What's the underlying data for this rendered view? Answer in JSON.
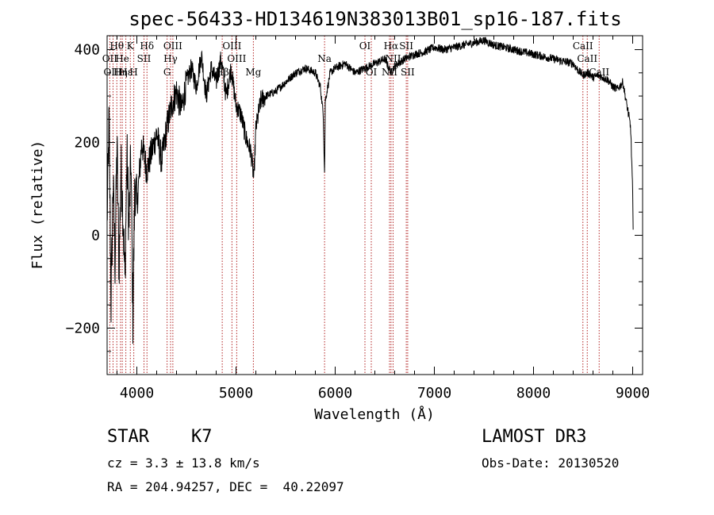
{
  "chart_data": {
    "type": "line",
    "title": "spec-56433-HD134619N383013B01_sp16-187.fits",
    "xlabel": "Wavelength (Å)",
    "ylabel": "Flux (relative)",
    "xlim": [
      3700,
      9100
    ],
    "ylim": [
      -300,
      430
    ],
    "x_ticks": [
      4000,
      5000,
      6000,
      7000,
      8000,
      9000
    ],
    "x_tick_labels": [
      "4000",
      "5000",
      "6000",
      "7000",
      "8000",
      "9000"
    ],
    "y_ticks": [
      -200,
      0,
      200,
      400
    ],
    "y_tick_labels": [
      "−200",
      "0",
      "200",
      "400"
    ],
    "grid": false,
    "series": [
      {
        "name": "flux",
        "x": [
          3700,
          3720,
          3740,
          3760,
          3780,
          3800,
          3820,
          3840,
          3860,
          3880,
          3900,
          3920,
          3940,
          3960,
          3980,
          4000,
          4050,
          4100,
          4150,
          4200,
          4250,
          4300,
          4350,
          4400,
          4450,
          4500,
          4550,
          4600,
          4650,
          4700,
          4750,
          4800,
          4850,
          4900,
          4950,
          5000,
          5050,
          5100,
          5150,
          5180,
          5200,
          5250,
          5300,
          5400,
          5500,
          5600,
          5700,
          5800,
          5850,
          5880,
          5893,
          5900,
          5950,
          6000,
          6100,
          6200,
          6300,
          6400,
          6500,
          6563,
          6600,
          6700,
          6800,
          6900,
          7000,
          7100,
          7200,
          7300,
          7400,
          7500,
          7600,
          7700,
          7800,
          7900,
          8000,
          8100,
          8200,
          8300,
          8400,
          8450,
          8500,
          8550,
          8600,
          8650,
          8700,
          8750,
          8800,
          8850,
          8900,
          8950,
          8980,
          9000,
          9005
        ],
        "values": [
          30,
          250,
          -150,
          120,
          -60,
          200,
          -80,
          150,
          50,
          -100,
          180,
          10,
          170,
          -180,
          120,
          60,
          200,
          140,
          180,
          220,
          160,
          230,
          280,
          310,
          270,
          330,
          360,
          320,
          390,
          300,
          360,
          330,
          380,
          300,
          360,
          280,
          260,
          210,
          180,
          120,
          230,
          290,
          300,
          310,
          330,
          350,
          360,
          350,
          320,
          260,
          130,
          290,
          350,
          360,
          370,
          350,
          360,
          370,
          380,
          350,
          365,
          380,
          390,
          395,
          405,
          400,
          405,
          410,
          415,
          420,
          410,
          405,
          400,
          395,
          390,
          385,
          380,
          375,
          370,
          355,
          345,
          350,
          340,
          345,
          340,
          335,
          320,
          315,
          330,
          270,
          230,
          90,
          0
        ]
      }
    ],
    "line_markers": [
      {
        "label": "Hθ",
        "x": 3798,
        "row": 1
      },
      {
        "label": "OII",
        "x": 3727,
        "row": 2
      },
      {
        "label": "OIII",
        "x": 3760,
        "row": 3
      },
      {
        "label": "Hε",
        "x": 3889,
        "row": 3
      },
      {
        "label": "He",
        "x": 3853,
        "row": 2
      },
      {
        "label": "Hη",
        "x": 3835,
        "row": 3
      },
      {
        "label": "K",
        "x": 3934,
        "row": 1
      },
      {
        "label": "H",
        "x": 3969,
        "row": 3
      },
      {
        "label": "SII",
        "x": 4072,
        "row": 2
      },
      {
        "label": "Hδ",
        "x": 4102,
        "row": 1
      },
      {
        "label": "OIII",
        "x": 4363,
        "row": 1
      },
      {
        "label": "Hγ",
        "x": 4340,
        "row": 2
      },
      {
        "label": "G",
        "x": 4305,
        "row": 3
      },
      {
        "label": "Hβ",
        "x": 4861,
        "row": 3
      },
      {
        "label": "OIII",
        "x": 4959,
        "row": 1
      },
      {
        "label": "OIII",
        "x": 5007,
        "row": 2
      },
      {
        "label": "Mg",
        "x": 5175,
        "row": 3
      },
      {
        "label": "Na",
        "x": 5893,
        "row": 2
      },
      {
        "label": "OI",
        "x": 6300,
        "row": 1
      },
      {
        "label": "OI",
        "x": 6364,
        "row": 3
      },
      {
        "label": "Hα",
        "x": 6563,
        "row": 1
      },
      {
        "label": "NII",
        "x": 6548,
        "row": 3
      },
      {
        "label": "NII",
        "x": 6584,
        "row": 2
      },
      {
        "label": "SII",
        "x": 6717,
        "row": 1
      },
      {
        "label": "SII",
        "x": 6731,
        "row": 3
      },
      {
        "label": "CaII",
        "x": 8498,
        "row": 1
      },
      {
        "label": "CaII",
        "x": 8542,
        "row": 2
      },
      {
        "label": "CaII",
        "x": 8662,
        "row": 3
      }
    ]
  },
  "info": {
    "class_line": "STAR    K7",
    "cz_line": "cz = 3.3 ± 13.8 km/s",
    "coord_line": "RA = 204.94257, DEC =  40.22097",
    "survey_line": "LAMOST DR3",
    "obs_date_line": "Obs-Date: 20130520"
  },
  "colors": {
    "marker_line": "#b22222",
    "spectrum": "#000000"
  }
}
